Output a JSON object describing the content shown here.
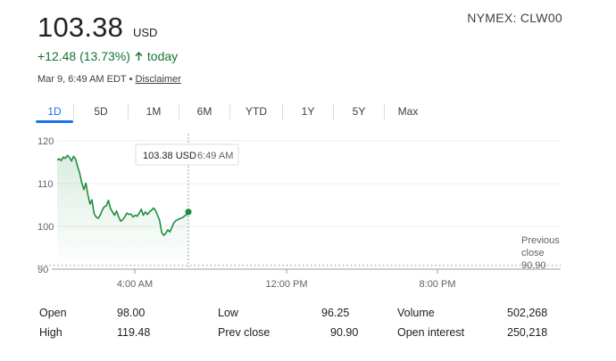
{
  "quote": {
    "price": "103.38",
    "currency": "USD",
    "symbol": "NYMEX: CLW00",
    "change_text": "+12.48 (13.73%)",
    "change_suffix": "today",
    "timestamp": "Mar 9, 6:49 AM EDT",
    "separator": "•",
    "disclaimer": "Disclaimer",
    "positive_color": "#137333"
  },
  "tabs": [
    "1D",
    "5D",
    "1M",
    "6M",
    "YTD",
    "1Y",
    "5Y",
    "Max"
  ],
  "active_tab": "1D",
  "tooltip": {
    "value": "103.38 USD",
    "time": "6:49 AM"
  },
  "previous_close_label": [
    "Previous",
    "close",
    "90.90"
  ],
  "chart_data": {
    "type": "line",
    "ylim": [
      90,
      120
    ],
    "y_ticks": [
      "120",
      "110",
      "100",
      "90"
    ],
    "x_ticks": [
      "4:00 AM",
      "12:00 PM",
      "8:00 PM"
    ],
    "previous_close": 90.9,
    "line_color": "#1e8e3e",
    "series": [
      {
        "values": [
          115.5,
          115.8,
          115.4,
          116.2,
          115.9,
          116.6,
          116.1,
          115.3,
          116.4,
          115.7,
          114.0,
          112.4,
          110.2,
          108.6,
          110.1,
          107.4,
          105.2,
          106.2,
          103.1,
          102.2,
          101.9,
          102.6,
          103.8,
          104.6,
          104.8,
          106.1,
          104.2,
          103.4,
          102.6,
          103.6,
          102.2,
          101.2,
          101.6,
          102.2,
          103.1,
          102.8,
          102.9,
          102.2,
          102.6,
          102.4,
          103.1,
          104.0,
          102.6,
          103.4,
          102.8,
          103.4,
          103.8,
          104.3,
          103.7,
          102.6,
          101.4,
          98.6,
          97.9,
          98.4,
          99.2,
          98.7,
          99.8,
          100.9,
          101.4,
          101.6,
          101.9,
          102.0,
          102.4,
          102.7,
          103.38
        ]
      }
    ]
  },
  "stats": {
    "open_label": "Open",
    "open_value": "98.00",
    "high_label": "High",
    "high_value": "119.48",
    "low_label": "Low",
    "low_value": "96.25",
    "prev_close_label": "Prev close",
    "prev_close_value": "90.90",
    "volume_label": "Volume",
    "volume_value": "502,268",
    "open_interest_label": "Open interest",
    "open_interest_value": "250,218"
  }
}
